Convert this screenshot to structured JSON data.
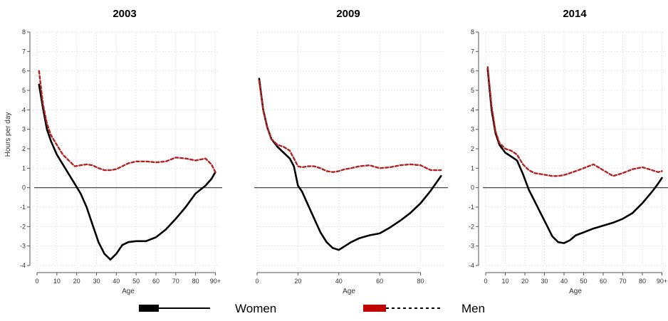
{
  "chart_data": [
    {
      "type": "line",
      "title": "2003",
      "xlabel": "Age",
      "ylabel": "Hours per day",
      "xlim": [
        0,
        92
      ],
      "ylim": [
        -4,
        8
      ],
      "xticks": [
        "0",
        "10",
        "20",
        "30",
        "40",
        "50",
        "60",
        "70",
        "80",
        "90+"
      ],
      "yticks": [
        "-4",
        "-3",
        "-2",
        "-1",
        "0",
        "1",
        "2",
        "3",
        "4",
        "5",
        "6",
        "7",
        "8"
      ],
      "grid": true,
      "series": [
        {
          "name": "Women",
          "color": "#000000",
          "dash": false,
          "x": [
            1,
            3,
            5,
            7,
            10,
            13,
            16,
            19,
            22,
            25,
            28,
            31,
            34,
            37,
            40,
            43,
            46,
            50,
            55,
            60,
            65,
            70,
            75,
            80,
            85,
            88,
            90
          ],
          "y": [
            5.3,
            4.1,
            3.0,
            2.4,
            1.7,
            1.2,
            0.7,
            0.2,
            -0.3,
            -1.0,
            -1.9,
            -2.8,
            -3.4,
            -3.7,
            -3.4,
            -2.95,
            -2.8,
            -2.75,
            -2.75,
            -2.55,
            -2.15,
            -1.6,
            -1.0,
            -0.3,
            0.1,
            0.45,
            0.8
          ]
        },
        {
          "name": "Men",
          "color": "#b22222",
          "dash": true,
          "x": [
            1,
            3,
            5,
            7,
            10,
            13,
            16,
            19,
            22,
            25,
            28,
            31,
            34,
            37,
            40,
            43,
            46,
            50,
            55,
            60,
            65,
            70,
            75,
            80,
            85,
            88,
            90
          ],
          "y": [
            6.0,
            4.3,
            3.3,
            2.7,
            2.2,
            1.7,
            1.4,
            1.1,
            1.15,
            1.2,
            1.15,
            1.0,
            0.9,
            0.9,
            0.95,
            1.1,
            1.25,
            1.35,
            1.35,
            1.3,
            1.35,
            1.55,
            1.5,
            1.4,
            1.5,
            1.2,
            0.8
          ]
        }
      ]
    },
    {
      "type": "line",
      "title": "2009",
      "xlabel": "Age",
      "xlim": [
        0,
        92
      ],
      "ylim": [
        -4,
        8
      ],
      "xticks": [
        "0",
        "20",
        "40",
        "60",
        "80"
      ],
      "grid": true,
      "series": [
        {
          "name": "Women",
          "color": "#000000",
          "dash": false,
          "x": [
            1,
            3,
            5,
            7,
            10,
            13,
            16,
            18,
            20,
            22,
            25,
            28,
            31,
            34,
            37,
            40,
            43,
            46,
            50,
            55,
            60,
            65,
            70,
            75,
            80,
            85,
            90
          ],
          "y": [
            5.6,
            4.0,
            3.1,
            2.5,
            2.1,
            1.8,
            1.5,
            1.1,
            0.1,
            -0.2,
            -0.9,
            -1.6,
            -2.3,
            -2.8,
            -3.1,
            -3.2,
            -3.0,
            -2.8,
            -2.6,
            -2.45,
            -2.35,
            -2.05,
            -1.7,
            -1.3,
            -0.8,
            -0.15,
            0.6
          ]
        },
        {
          "name": "Men",
          "color": "#b22222",
          "dash": true,
          "x": [
            1,
            3,
            5,
            7,
            10,
            13,
            16,
            18,
            20,
            22,
            25,
            28,
            31,
            34,
            37,
            40,
            43,
            46,
            50,
            55,
            60,
            65,
            70,
            75,
            80,
            85,
            90
          ],
          "y": [
            5.5,
            4.0,
            3.1,
            2.5,
            2.2,
            2.1,
            1.9,
            1.5,
            1.1,
            1.05,
            1.1,
            1.1,
            1.0,
            0.85,
            0.8,
            0.85,
            0.95,
            1.0,
            1.1,
            1.15,
            1.0,
            1.05,
            1.15,
            1.2,
            1.15,
            0.9,
            0.9
          ]
        }
      ]
    },
    {
      "type": "line",
      "title": "2014",
      "xlabel": "Age",
      "xlim": [
        0,
        92
      ],
      "ylim": [
        -4,
        8
      ],
      "xticks": [
        "0",
        "10",
        "20",
        "30",
        "40",
        "50",
        "60",
        "70",
        "80",
        "90+"
      ],
      "yticks": [
        "-4",
        "-3",
        "-2",
        "-1",
        "0",
        "1",
        "2",
        "3",
        "4",
        "5",
        "6",
        "7",
        "8"
      ],
      "grid": true,
      "series": [
        {
          "name": "Women",
          "color": "#000000",
          "dash": false,
          "x": [
            1,
            3,
            5,
            7,
            10,
            13,
            16,
            19,
            22,
            25,
            28,
            31,
            34,
            37,
            40,
            43,
            46,
            50,
            55,
            60,
            65,
            70,
            75,
            80,
            85,
            88,
            90
          ],
          "y": [
            6.1,
            4.0,
            2.8,
            2.2,
            1.8,
            1.6,
            1.4,
            0.7,
            -0.1,
            -0.7,
            -1.3,
            -1.9,
            -2.5,
            -2.8,
            -2.85,
            -2.7,
            -2.45,
            -2.3,
            -2.1,
            -1.95,
            -1.8,
            -1.6,
            -1.3,
            -0.8,
            -0.2,
            0.2,
            0.5
          ]
        },
        {
          "name": "Men",
          "color": "#b22222",
          "dash": true,
          "x": [
            1,
            3,
            5,
            7,
            10,
            13,
            16,
            19,
            22,
            25,
            28,
            31,
            34,
            37,
            40,
            43,
            46,
            50,
            55,
            60,
            65,
            70,
            75,
            80,
            85,
            88,
            90
          ],
          "y": [
            6.2,
            4.2,
            2.9,
            2.3,
            2.0,
            1.9,
            1.7,
            1.2,
            0.9,
            0.75,
            0.7,
            0.65,
            0.6,
            0.6,
            0.65,
            0.75,
            0.85,
            1.0,
            1.2,
            0.9,
            0.6,
            0.75,
            0.95,
            1.05,
            0.9,
            0.8,
            0.85
          ]
        }
      ]
    }
  ],
  "legend": {
    "items": [
      {
        "label": "Women",
        "color": "#000000",
        "style": "solid"
      },
      {
        "label": "Men",
        "color": "#b22222",
        "style": "dashed"
      }
    ]
  }
}
